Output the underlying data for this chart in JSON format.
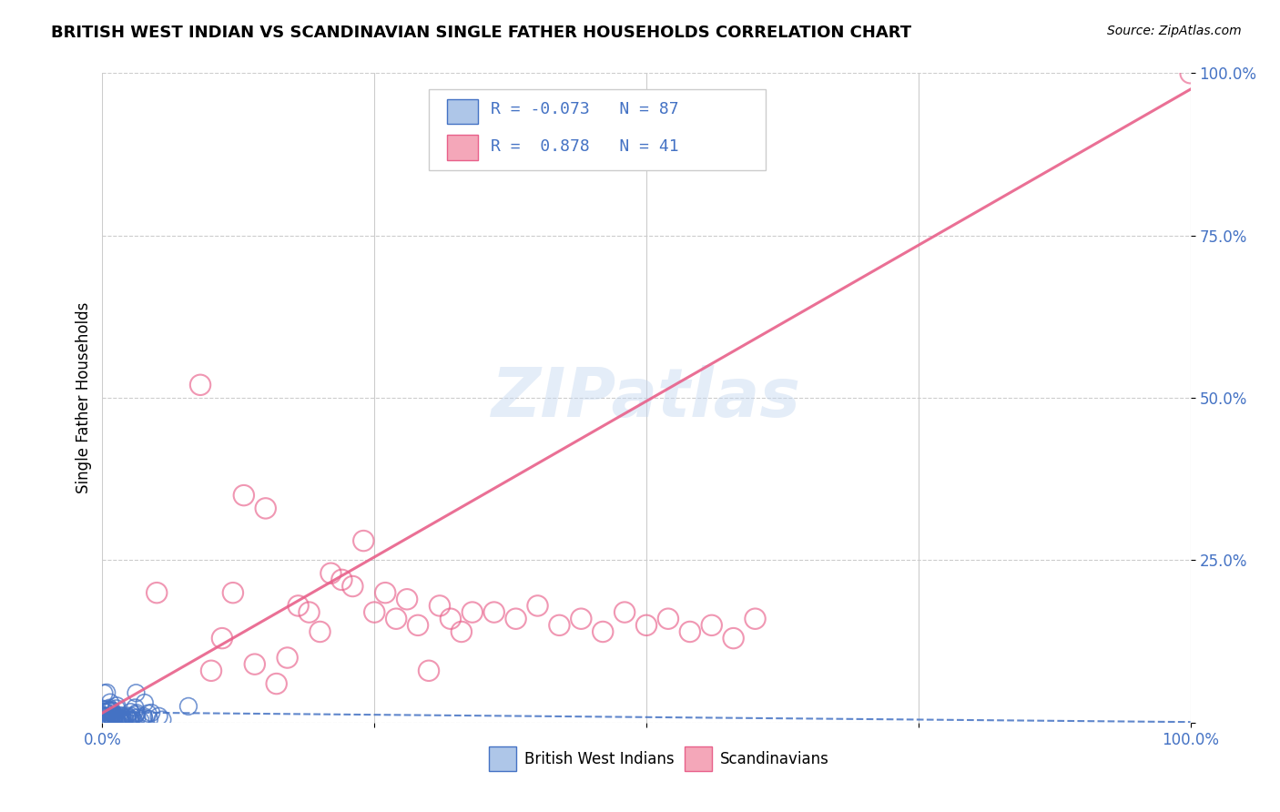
{
  "title": "BRITISH WEST INDIAN VS SCANDINAVIAN SINGLE FATHER HOUSEHOLDS CORRELATION CHART",
  "source": "Source: ZipAtlas.com",
  "ylabel": "Single Father Households",
  "xlim": [
    0,
    1.0
  ],
  "ylim": [
    0,
    1.0
  ],
  "ytick_positions": [
    0.0,
    0.25,
    0.5,
    0.75,
    1.0
  ],
  "watermark": "ZIPatlas",
  "legend_R1": "-0.073",
  "legend_N1": "87",
  "legend_R2": "0.878",
  "legend_N2": "41",
  "color_blue": "#aec6e8",
  "color_pink": "#f4a7b9",
  "color_blue_dark": "#4472c4",
  "color_pink_dark": "#e8608a",
  "color_text_blue": "#4472c4",
  "grid_color": "#cccccc",
  "background_color": "#ffffff",
  "scatter_pink_x": [
    0.05,
    0.09,
    0.1,
    0.11,
    0.12,
    0.13,
    0.14,
    0.15,
    0.16,
    0.17,
    0.18,
    0.19,
    0.2,
    0.21,
    0.22,
    0.23,
    0.24,
    0.25,
    0.26,
    0.27,
    0.28,
    0.29,
    0.3,
    0.31,
    0.32,
    0.33,
    0.34,
    0.36,
    0.38,
    0.4,
    0.42,
    0.44,
    0.46,
    0.48,
    0.5,
    0.52,
    0.54,
    0.56,
    0.58,
    0.6,
    1.0
  ],
  "scatter_pink_y": [
    0.2,
    0.52,
    0.08,
    0.13,
    0.2,
    0.35,
    0.09,
    0.33,
    0.06,
    0.1,
    0.18,
    0.17,
    0.14,
    0.23,
    0.22,
    0.21,
    0.28,
    0.17,
    0.2,
    0.16,
    0.19,
    0.15,
    0.08,
    0.18,
    0.16,
    0.14,
    0.17,
    0.17,
    0.16,
    0.18,
    0.15,
    0.16,
    0.14,
    0.17,
    0.15,
    0.16,
    0.14,
    0.15,
    0.13,
    0.16,
    1.0
  ]
}
